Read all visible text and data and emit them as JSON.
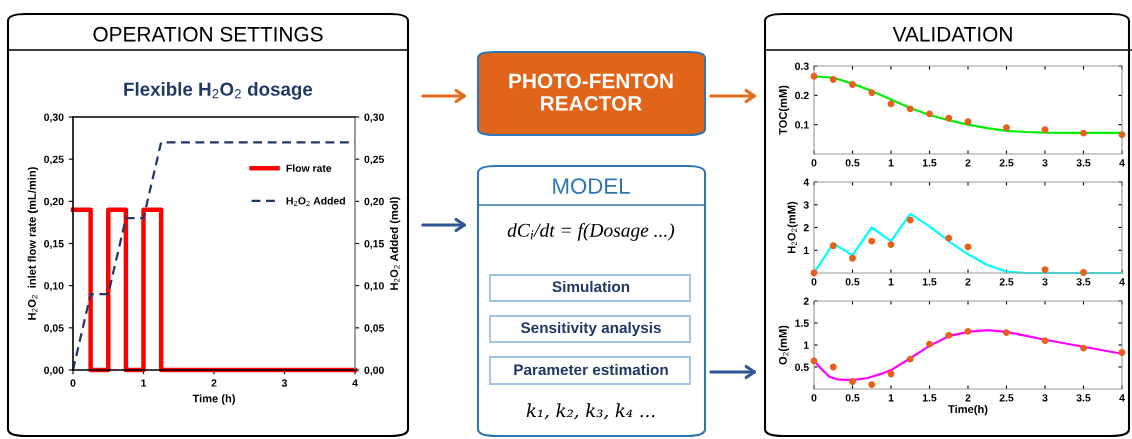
{
  "chart_data": [
    {
      "type": "line",
      "title": "OPERATION SETTINGS",
      "subtitle": "Flexible H$_{2}$O$_{2}$ dosage",
      "xlabel": "Time (h)",
      "ylabel": "H$_{2}$O$_{2}$  inlet flow rate (mL/min)",
      "y2label": "H$_{2}$O$_{2}$ Added (mol)",
      "series": [
        {
          "name": "Flow rate",
          "color": "#ff0000",
          "line_style": "solid",
          "x": [
            0,
            0.25,
            0.25,
            0.5,
            0.5,
            0.75,
            0.75,
            1,
            1,
            1.25,
            1.25,
            4
          ],
          "values": [
            0.19,
            0.19,
            0,
            0,
            0.19,
            0.19,
            0,
            0,
            0.19,
            0.19,
            0,
            0
          ]
        },
        {
          "name": "H$_{2}$O$_{2}$ Added",
          "color": "#1f3864",
          "line_style": "dashed",
          "axis": "y2",
          "x": [
            0,
            0.25,
            0.5,
            0.75,
            1,
            1.25,
            4
          ],
          "values": [
            0,
            0.09,
            0.09,
            0.18,
            0.18,
            0.27,
            0.27
          ]
        }
      ],
      "xlim": [
        0,
        4
      ],
      "xticks": [
        0,
        1,
        2,
        3,
        4
      ],
      "ylim": [
        0,
        0.3
      ],
      "yticks": [
        {
          "value": 0,
          "label": "0,00"
        },
        {
          "value": 0.05,
          "label": "0,05"
        },
        {
          "value": 0.1,
          "label": "0,10"
        },
        {
          "value": 0.15,
          "label": "0,15"
        },
        {
          "value": 0.2,
          "label": "0,20"
        },
        {
          "value": 0.25,
          "label": "0,25"
        },
        {
          "value": 0.3,
          "label": "0,30"
        }
      ],
      "y2lim": [
        0,
        0.3
      ],
      "y2ticks": [
        {
          "value": 0,
          "label": "0,00"
        },
        {
          "value": 0.05,
          "label": "0,05"
        },
        {
          "value": 0.1,
          "label": "0,10"
        },
        {
          "value": 0.15,
          "label": "0,15"
        },
        {
          "value": 0.2,
          "label": "0,20"
        },
        {
          "value": 0.25,
          "label": "0,25"
        },
        {
          "value": 0.3,
          "label": "0,30"
        }
      ],
      "legend": "top right",
      "grid": false
    },
    {
      "type": "other",
      "annotations": [
        "PHOTO-FENTON\nREACTOR",
        "MODEL",
        "dC$_{i}$/dt = f(Dosage ...)",
        "Simulation",
        "Sensitivity analysis",
        "Parameter estimation",
        "k₁, k₂, k₃, k₄ ..."
      ]
    },
    {
      "type": "line",
      "title": "VALIDATION",
      "ylabel": "TOC(mM)",
      "series": [
        {
          "type": "line",
          "color": "#00ee00",
          "x": [
            0,
            0.25,
            0.5,
            0.75,
            1,
            1.25,
            1.5,
            1.75,
            2,
            2.25,
            2.5,
            2.75,
            3,
            3.5,
            4
          ],
          "values": [
            0.265,
            0.26,
            0.24,
            0.215,
            0.186,
            0.157,
            0.133,
            0.115,
            0.1,
            0.088,
            0.079,
            0.075,
            0.073,
            0.072,
            0.072
          ]
        },
        {
          "type": "scatter",
          "color": "#e8601c",
          "marker": "circle",
          "x": [
            0,
            0.25,
            0.5,
            0.75,
            1,
            1.25,
            1.5,
            1.75,
            2,
            2.5,
            3,
            3.5,
            4
          ],
          "values": [
            0.265,
            0.254,
            0.237,
            0.209,
            0.171,
            0.154,
            0.137,
            0.122,
            0.11,
            0.09,
            0.083,
            0.071,
            0.066
          ]
        }
      ],
      "xlim": [
        0,
        4
      ],
      "xticks": [
        0,
        0.5,
        1,
        1.5,
        2,
        2.5,
        3,
        3.5,
        4
      ],
      "ylim": [
        0,
        0.3
      ],
      "yticks": [
        0.1,
        0.2,
        0.3
      ],
      "grid": false
    },
    {
      "type": "line",
      "ylabel": "H$_{2}$O$_{2}$(mM)",
      "series": [
        {
          "type": "line",
          "color": "#00ffff",
          "x": [
            0,
            0.25,
            0.5,
            0.75,
            1,
            1.25,
            1.5,
            1.75,
            2,
            2.25,
            2.5,
            2.75,
            4
          ],
          "values": [
            0,
            1.3,
            0.78,
            2.0,
            1.4,
            2.6,
            2.05,
            1.4,
            0.82,
            0.35,
            0.06,
            0,
            0
          ]
        },
        {
          "type": "scatter",
          "color": "#e8601c",
          "marker": "circle",
          "x": [
            0,
            0.25,
            0.5,
            0.75,
            1,
            1.25,
            1.75,
            2,
            3,
            3.5
          ],
          "values": [
            0,
            1.2,
            0.65,
            1.4,
            1.25,
            2.33,
            1.53,
            1.15,
            0.15,
            0.02
          ]
        }
      ],
      "xlim": [
        0,
        4
      ],
      "xticks": [
        0,
        0.5,
        1,
        1.5,
        2,
        2.5,
        3,
        3.5,
        4
      ],
      "ylim": [
        0,
        4
      ],
      "yticks": [
        1,
        2,
        3,
        4
      ],
      "grid": false
    },
    {
      "type": "line",
      "xlabel": "Time(h)",
      "ylabel": "O$_{2}$(mM)",
      "series": [
        {
          "type": "line",
          "color": "#ff00ff",
          "x": [
            0,
            0.1,
            0.2,
            0.3,
            0.5,
            0.7,
            0.9,
            1,
            1.25,
            1.5,
            1.75,
            2,
            2.25,
            2.5,
            3,
            3.5,
            4
          ],
          "values": [
            0.64,
            0.45,
            0.28,
            0.22,
            0.2,
            0.25,
            0.36,
            0.43,
            0.7,
            0.98,
            1.2,
            1.3,
            1.34,
            1.3,
            1.12,
            0.96,
            0.8
          ]
        },
        {
          "type": "scatter",
          "color": "#e8601c",
          "marker": "circle",
          "x": [
            0,
            0.25,
            0.5,
            0.75,
            1,
            1.25,
            1.5,
            1.75,
            2,
            2.5,
            3,
            3.5,
            4
          ],
          "values": [
            0.64,
            0.5,
            0.17,
            0.1,
            0.34,
            0.68,
            1.02,
            1.22,
            1.31,
            1.28,
            1.1,
            0.93,
            0.83
          ]
        }
      ],
      "xlim": [
        0,
        4
      ],
      "xticks": [
        0,
        0.5,
        1,
        1.5,
        2,
        2.5,
        3,
        3.5,
        4
      ],
      "ylim": [
        0,
        2
      ],
      "yticks": [
        0.5,
        1,
        1.5,
        2
      ],
      "grid": false
    }
  ]
}
